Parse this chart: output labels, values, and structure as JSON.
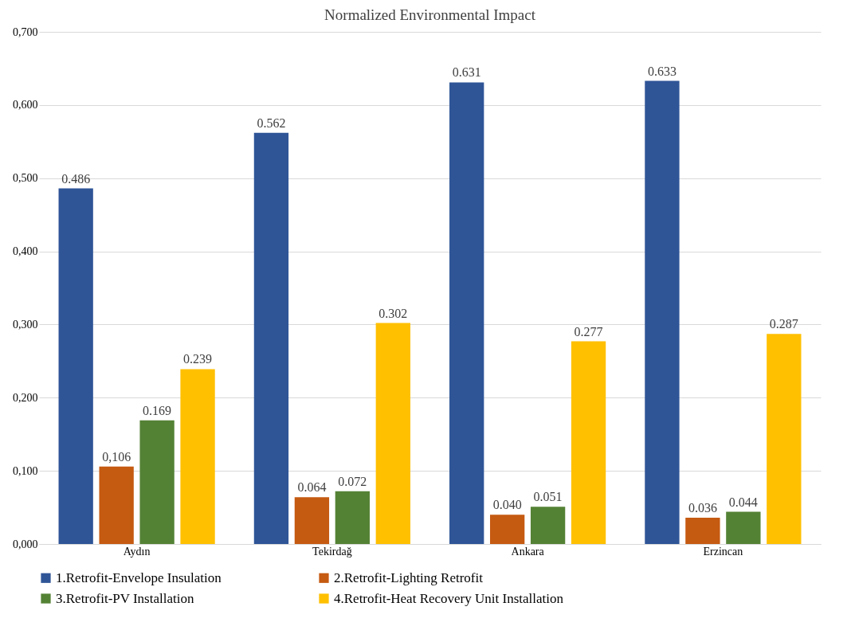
{
  "chart_data": {
    "type": "bar",
    "title": "Normalized Environmental Impact",
    "categories": [
      "Aydın",
      "Tekirdağ",
      "Ankara",
      "Erzincan"
    ],
    "series": [
      {
        "name": "1.Retrofit-Envelope Insulation",
        "color": "#2f5597",
        "values": [
          0.486,
          0.562,
          0.631,
          0.633
        ],
        "value_labels": [
          "0.486",
          "0.562",
          "0.631",
          "0.633"
        ]
      },
      {
        "name": "2.Retrofit-Lighting Retrofit",
        "color": "#c55a11",
        "values": [
          0.106,
          0.064,
          0.04,
          0.036
        ],
        "value_labels": [
          "0,106",
          "0.064",
          "0.040",
          "0.036"
        ]
      },
      {
        "name": "3.Retrofit-PV Installation",
        "color": "#548235",
        "values": [
          0.169,
          0.072,
          0.051,
          0.044
        ],
        "value_labels": [
          "0.169",
          "0.072",
          "0.051",
          "0.044"
        ]
      },
      {
        "name": "4.Retrofit-Heat Recovery Unit Installation",
        "color": "#ffc000",
        "values": [
          0.239,
          0.302,
          0.277,
          0.287
        ],
        "value_labels": [
          "0.239",
          "0.302",
          "0.277",
          "0.287"
        ]
      }
    ],
    "ylim": [
      0,
      0.7
    ],
    "yticks": [
      {
        "value": 0,
        "label": "0,000"
      },
      {
        "value": 0.1,
        "label": "0,100"
      },
      {
        "value": 0.2,
        "label": "0,200"
      },
      {
        "value": 0.3,
        "label": "0,300"
      },
      {
        "value": 0.4,
        "label": "0,400"
      },
      {
        "value": 0.5,
        "label": "0,500"
      },
      {
        "value": 0.6,
        "label": "0,600"
      },
      {
        "value": 0.7,
        "label": "0,700"
      }
    ],
    "grid": "y",
    "legend": "bottom"
  }
}
